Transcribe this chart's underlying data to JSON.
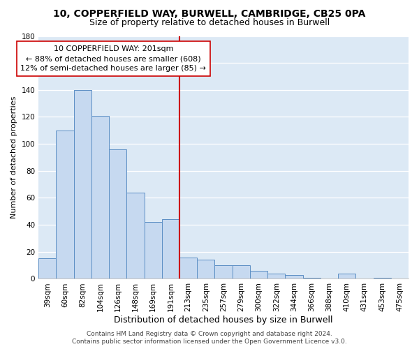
{
  "title": "10, COPPERFIELD WAY, BURWELL, CAMBRIDGE, CB25 0PA",
  "subtitle": "Size of property relative to detached houses in Burwell",
  "xlabel": "Distribution of detached houses by size in Burwell",
  "ylabel": "Number of detached properties",
  "bar_labels": [
    "39sqm",
    "60sqm",
    "82sqm",
    "104sqm",
    "126sqm",
    "148sqm",
    "169sqm",
    "191sqm",
    "213sqm",
    "235sqm",
    "257sqm",
    "279sqm",
    "300sqm",
    "322sqm",
    "344sqm",
    "366sqm",
    "388sqm",
    "410sqm",
    "431sqm",
    "453sqm",
    "475sqm"
  ],
  "bar_values": [
    15,
    110,
    140,
    121,
    96,
    64,
    42,
    44,
    16,
    14,
    10,
    10,
    6,
    4,
    3,
    1,
    0,
    4,
    0,
    1,
    0
  ],
  "bar_color": "#c6d9f0",
  "bar_edge_color": "#5b8ec4",
  "ylim": [
    0,
    180
  ],
  "yticks": [
    0,
    20,
    40,
    60,
    80,
    100,
    120,
    140,
    160,
    180
  ],
  "vline_x": 7.5,
  "vline_color": "#cc0000",
  "annotation_text": "10 COPPERFIELD WAY: 201sqm\n← 88% of detached houses are smaller (608)\n12% of semi-detached houses are larger (85) →",
  "annotation_box_facecolor": "#ffffff",
  "annotation_box_edgecolor": "#cc0000",
  "figure_facecolor": "#ffffff",
  "axes_facecolor": "#dce9f5",
  "grid_color": "#ffffff",
  "title_fontsize": 10,
  "subtitle_fontsize": 9,
  "xlabel_fontsize": 9,
  "ylabel_fontsize": 8,
  "tick_fontsize": 7.5,
  "annotation_fontsize": 8,
  "footer_fontsize": 6.5,
  "footer_line1": "Contains HM Land Registry data © Crown copyright and database right 2024.",
  "footer_line2": "Contains public sector information licensed under the Open Government Licence v3.0."
}
